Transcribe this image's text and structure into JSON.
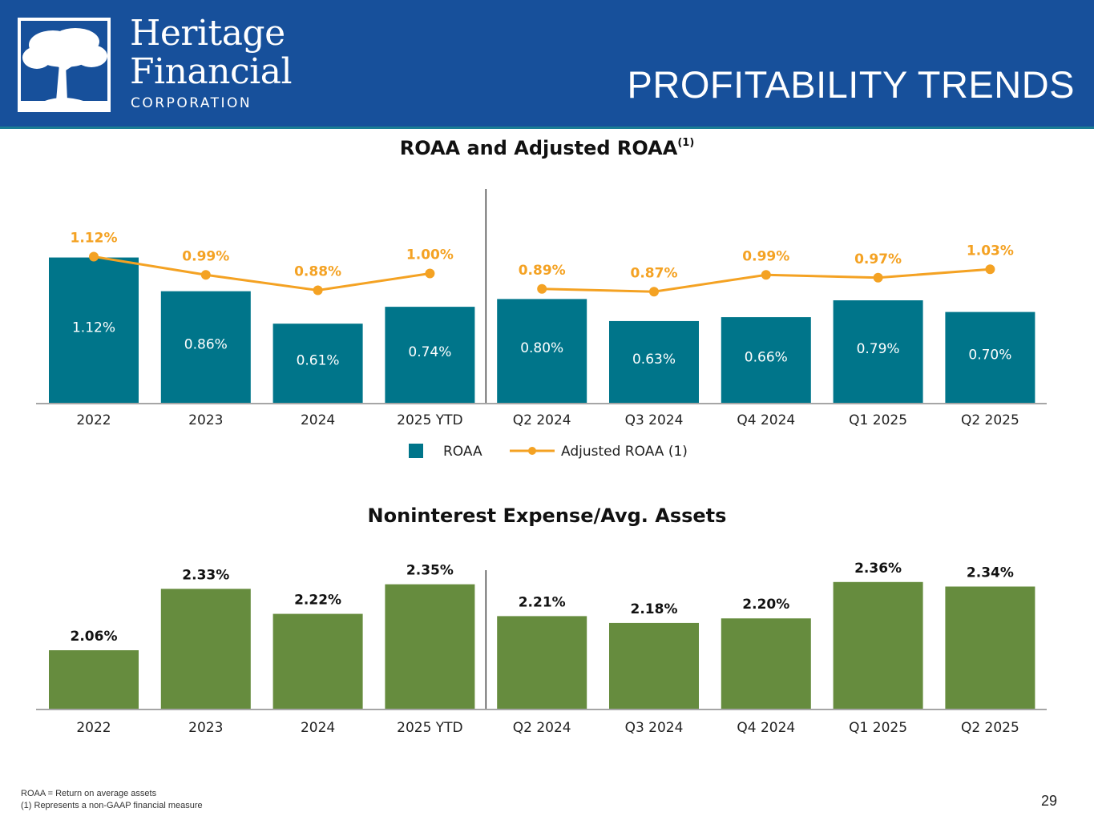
{
  "header": {
    "logo_line1": "Heritage",
    "logo_line2": "Financial",
    "logo_line3": "CORPORATION",
    "page_title": "PROFITABILITY TRENDS",
    "colors": {
      "header_bg": "#17509b",
      "header_border": "#1a7d95"
    }
  },
  "chart_data": [
    {
      "type": "bar",
      "title": "ROAA and Adjusted ROAA",
      "title_superscript": "(1)",
      "categories": [
        "2022",
        "2023",
        "2024",
        "2025 YTD",
        "Q2 2024",
        "Q3 2024",
        "Q4 2024",
        "Q1 2025",
        "Q2 2025"
      ],
      "series": [
        {
          "name": "ROAA",
          "type": "bar",
          "color": "#00758a",
          "values": [
            1.12,
            0.86,
            0.61,
            0.74,
            0.8,
            0.63,
            0.66,
            0.79,
            0.7
          ],
          "labels": [
            "1.12%",
            "0.86%",
            "0.61%",
            "0.74%",
            "0.80%",
            "0.63%",
            "0.66%",
            "0.79%",
            "0.70%"
          ]
        },
        {
          "name": "Adjusted ROAA (1)",
          "type": "line",
          "color": "#f4a223",
          "segments": [
            [
              0,
              3
            ],
            [
              4,
              8
            ]
          ],
          "values": [
            1.12,
            0.99,
            0.88,
            1.0,
            0.89,
            0.87,
            0.99,
            0.97,
            1.03
          ],
          "labels": [
            "1.12%",
            "0.99%",
            "0.88%",
            "1.00%",
            "0.89%",
            "0.87%",
            "0.99%",
            "0.97%",
            "1.03%"
          ]
        }
      ],
      "divider_after_index": 3,
      "xlabel": "",
      "ylabel": "",
      "legend": "bottom-center",
      "grid": false
    },
    {
      "type": "bar",
      "title": "Noninterest Expense/Avg. Assets",
      "categories": [
        "2022",
        "2023",
        "2024",
        "2025 YTD",
        "Q2 2024",
        "Q3 2024",
        "Q4 2024",
        "Q1 2025",
        "Q2 2025"
      ],
      "series": [
        {
          "name": "Noninterest Expense/Avg. Assets",
          "type": "bar",
          "color": "#668c3e",
          "values": [
            2.06,
            2.33,
            2.22,
            2.35,
            2.21,
            2.18,
            2.2,
            2.36,
            2.34
          ],
          "labels": [
            "2.06%",
            "2.33%",
            "2.22%",
            "2.35%",
            "2.21%",
            "2.18%",
            "2.20%",
            "2.36%",
            "2.34%"
          ]
        }
      ],
      "divider_after_index": 3,
      "xlabel": "",
      "ylabel": "",
      "grid": false
    }
  ],
  "legend": {
    "roaa": "ROAA",
    "adjusted": "Adjusted ROAA (1)"
  },
  "footnotes": {
    "line1": "ROAA = Return on average assets",
    "line2": "(1) Represents a non-GAAP financial measure"
  },
  "page_number": "29"
}
